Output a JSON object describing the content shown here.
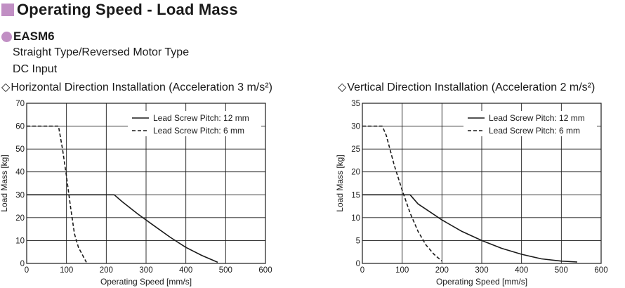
{
  "colors": {
    "accent": "#c18fc4",
    "line": "#1a1a1a",
    "grid": "#1a1a1a"
  },
  "header": {
    "title": "Operating Speed - Load Mass",
    "model": "EASM6",
    "type_line": "Straight Type/Reversed Motor Type",
    "input_line": "DC Input"
  },
  "chart_data": [
    {
      "type": "line",
      "title_prefix": "◇",
      "title": "Horizontal Direction Installation (Acceleration 3 m/s²)",
      "xlabel": "Operating Speed [mm/s]",
      "ylabel": "Load Mass [kg]",
      "xlim": [
        0,
        600
      ],
      "ylim": [
        0,
        70
      ],
      "xticks": [
        0,
        100,
        200,
        300,
        400,
        500,
        600
      ],
      "yticks": [
        0,
        10,
        20,
        30,
        40,
        50,
        60,
        70
      ],
      "grid": true,
      "legend_position": "top-right",
      "series": [
        {
          "name": "Lead Screw Pitch: 12 mm",
          "style": "solid",
          "points": [
            [
              0,
              30
            ],
            [
              220,
              30
            ],
            [
              240,
              27
            ],
            [
              280,
              21.5
            ],
            [
              320,
              16.5
            ],
            [
              360,
              11.5
            ],
            [
              400,
              7
            ],
            [
              440,
              3.5
            ],
            [
              480,
              0.5
            ]
          ]
        },
        {
          "name": "Lead Screw Pitch: 6 mm",
          "style": "dashed",
          "points": [
            [
              0,
              60
            ],
            [
              80,
              60
            ],
            [
              90,
              50
            ],
            [
              100,
              38
            ],
            [
              110,
              25
            ],
            [
              120,
              13
            ],
            [
              130,
              7
            ],
            [
              150,
              0.5
            ]
          ]
        }
      ]
    },
    {
      "type": "line",
      "title_prefix": "◇",
      "title": "Vertical Direction Installation (Acceleration 2 m/s²)",
      "xlabel": "Operating Speed [mm/s]",
      "ylabel": "Load Mass [kg]",
      "xlim": [
        0,
        600
      ],
      "ylim": [
        0,
        35
      ],
      "xticks": [
        0,
        100,
        200,
        300,
        400,
        500,
        600
      ],
      "yticks": [
        0,
        5,
        10,
        15,
        20,
        25,
        30,
        35
      ],
      "grid": true,
      "legend_position": "top-right",
      "series": [
        {
          "name": "Lead Screw Pitch: 12 mm",
          "style": "solid",
          "points": [
            [
              0,
              15
            ],
            [
              120,
              15
            ],
            [
              140,
              13
            ],
            [
              200,
              9.5
            ],
            [
              250,
              7
            ],
            [
              300,
              5
            ],
            [
              350,
              3.3
            ],
            [
              400,
              2
            ],
            [
              450,
              1
            ],
            [
              500,
              0.5
            ],
            [
              540,
              0.3
            ]
          ]
        },
        {
          "name": "Lead Screw Pitch: 6 mm",
          "style": "dashed",
          "points": [
            [
              0,
              30
            ],
            [
              50,
              30
            ],
            [
              60,
              28
            ],
            [
              80,
              21.5
            ],
            [
              100,
              16
            ],
            [
              120,
              11
            ],
            [
              140,
              7
            ],
            [
              160,
              4
            ],
            [
              180,
              2
            ],
            [
              200,
              0.5
            ]
          ]
        }
      ]
    }
  ]
}
